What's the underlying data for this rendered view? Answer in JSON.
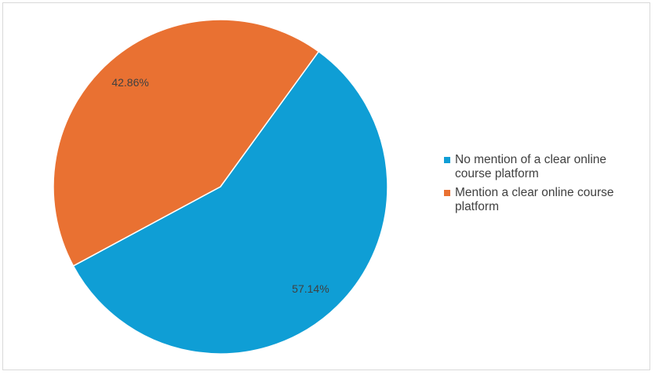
{
  "chart_data": {
    "type": "pie",
    "categories": [
      "No mention of a clear online course platform",
      "Mention a clear online course platform"
    ],
    "values": [
      57.14,
      42.86
    ],
    "value_labels": [
      "57.14%",
      "42.86%"
    ],
    "colors": [
      "#0f9ed5",
      "#e97132"
    ],
    "legend": "right"
  }
}
